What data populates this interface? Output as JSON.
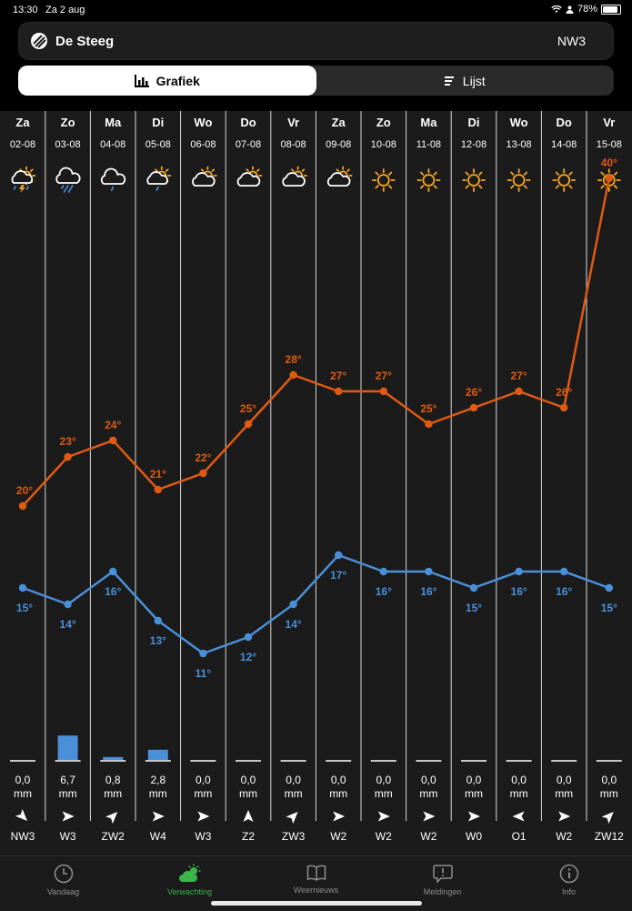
{
  "status": {
    "time": "13:30",
    "date": "Za 2 aug",
    "battery": "78%"
  },
  "location": {
    "name": "De Steeg",
    "wind": "NW3"
  },
  "tabs": [
    {
      "label": "Grafiek",
      "active": true
    },
    {
      "label": "Lijst",
      "active": false
    }
  ],
  "colors": {
    "max": "#e05a14",
    "min": "#4a90d9",
    "sun": "#f5a623",
    "active_nav": "#3bb54a"
  },
  "chart_data": {
    "type": "line",
    "x": [
      "02-08",
      "03-08",
      "04-08",
      "05-08",
      "06-08",
      "07-08",
      "08-08",
      "09-08",
      "10-08",
      "11-08",
      "12-08",
      "13-08",
      "14-08",
      "15-08"
    ],
    "series": [
      {
        "name": "max",
        "values": [
          20,
          23,
          24,
          21,
          22,
          25,
          28,
          27,
          27,
          25,
          26,
          27,
          26,
          40
        ],
        "labels": [
          "20°",
          "23°",
          "24°",
          "21°",
          "22°",
          "25°",
          "28°",
          "27°",
          "27°",
          "25°",
          "26°",
          "27°",
          "26°",
          "40°"
        ]
      },
      {
        "name": "min",
        "values": [
          15,
          14,
          16,
          13,
          11,
          12,
          14,
          17,
          16,
          16,
          15,
          16,
          16,
          15
        ],
        "labels": [
          "15°",
          "14°",
          "16°",
          "13°",
          "11°",
          "12°",
          "14°",
          "17°",
          "16°",
          "16°",
          "15°",
          "16°",
          "16°",
          "15°"
        ]
      }
    ],
    "ylim": [
      10,
      40
    ]
  },
  "days": [
    {
      "day": "Za",
      "date": "02-08",
      "icon": "thunderstorm-sun-icon",
      "rain": 0.0,
      "rain_label": "0,0",
      "unit": "mm",
      "wind": "NW3",
      "wind_deg": 135
    },
    {
      "day": "Zo",
      "date": "03-08",
      "icon": "heavy-rain-icon",
      "rain": 6.7,
      "rain_label": "6,7",
      "unit": "mm",
      "wind": "W3",
      "wind_deg": 90
    },
    {
      "day": "Ma",
      "date": "04-08",
      "icon": "light-rain-icon",
      "rain": 0.8,
      "rain_label": "0,8",
      "unit": "mm",
      "wind": "ZW2",
      "wind_deg": 45
    },
    {
      "day": "Di",
      "date": "05-08",
      "icon": "sun-cloud-drizzle-icon",
      "rain": 2.8,
      "rain_label": "2,8",
      "unit": "mm",
      "wind": "W4",
      "wind_deg": 90
    },
    {
      "day": "Wo",
      "date": "06-08",
      "icon": "partly-cloudy-icon",
      "rain": 0.0,
      "rain_label": "0,0",
      "unit": "mm",
      "wind": "W3",
      "wind_deg": 90
    },
    {
      "day": "Do",
      "date": "07-08",
      "icon": "partly-cloudy-icon",
      "rain": 0.0,
      "rain_label": "0,0",
      "unit": "mm",
      "wind": "Z2",
      "wind_deg": 0
    },
    {
      "day": "Vr",
      "date": "08-08",
      "icon": "partly-cloudy-icon",
      "rain": 0.0,
      "rain_label": "0,0",
      "unit": "mm",
      "wind": "ZW3",
      "wind_deg": 45
    },
    {
      "day": "Za",
      "date": "09-08",
      "icon": "partly-cloudy-icon",
      "rain": 0.0,
      "rain_label": "0,0",
      "unit": "mm",
      "wind": "W2",
      "wind_deg": 90
    },
    {
      "day": "Zo",
      "date": "10-08",
      "icon": "sun-icon",
      "rain": 0.0,
      "rain_label": "0,0",
      "unit": "mm",
      "wind": "W2",
      "wind_deg": 90
    },
    {
      "day": "Ma",
      "date": "11-08",
      "icon": "sun-icon",
      "rain": 0.0,
      "rain_label": "0,0",
      "unit": "mm",
      "wind": "W2",
      "wind_deg": 90
    },
    {
      "day": "Di",
      "date": "12-08",
      "icon": "sun-icon",
      "rain": 0.0,
      "rain_label": "0,0",
      "unit": "mm",
      "wind": "W0",
      "wind_deg": 90
    },
    {
      "day": "Wo",
      "date": "13-08",
      "icon": "sun-icon",
      "rain": 0.0,
      "rain_label": "0,0",
      "unit": "mm",
      "wind": "O1",
      "wind_deg": 270
    },
    {
      "day": "Do",
      "date": "14-08",
      "icon": "sun-icon",
      "rain": 0.0,
      "rain_label": "0,0",
      "unit": "mm",
      "wind": "W2",
      "wind_deg": 90
    },
    {
      "day": "Vr",
      "date": "15-08",
      "icon": "sun-icon",
      "rain": 0.0,
      "rain_label": "0,0",
      "unit": "mm",
      "wind": "ZW12",
      "wind_deg": 45
    }
  ],
  "nav": [
    {
      "label": "Vandaag",
      "icon": "clock-icon",
      "active": false
    },
    {
      "label": "Verwachting",
      "icon": "cloud-sun-icon",
      "active": true
    },
    {
      "label": "Weernieuws",
      "icon": "book-icon",
      "active": false
    },
    {
      "label": "Meldingen",
      "icon": "speech-bubble-icon",
      "active": false
    },
    {
      "label": "Info",
      "icon": "info-icon",
      "active": false
    }
  ]
}
